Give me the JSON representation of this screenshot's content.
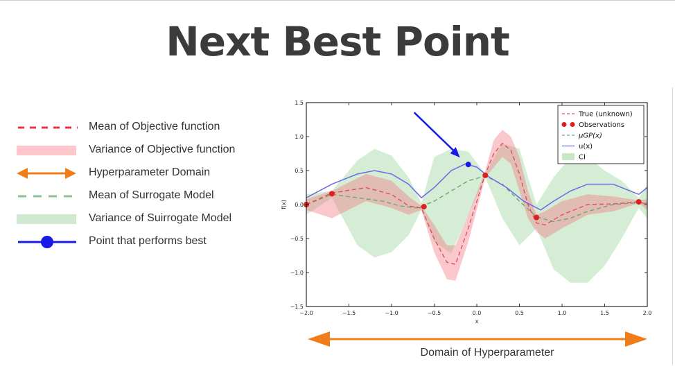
{
  "title": "Next Best Point",
  "legend_left": [
    {
      "key": "mean-objective",
      "label": "Mean of Objective function"
    },
    {
      "key": "variance-objective",
      "label": "Variance of Objective function"
    },
    {
      "key": "hyperparameter-domain",
      "label": "Hyperparameter Domain"
    },
    {
      "key": "mean-surrogate",
      "label": "Mean of Surrogate Model"
    },
    {
      "key": "variance-surrogate",
      "label": "Variance of Suirrogate Model"
    },
    {
      "key": "best-point",
      "label": "Point that performs best"
    }
  ],
  "domain_label": "Domain of Hyperparameter",
  "colors": {
    "red": "#e8313a",
    "red_fill": "#ffc6cb",
    "orange": "#f07c1a",
    "green_dash": "#8fbf8f",
    "green_fill": "#cfe8cf",
    "blue": "#1a1ae6",
    "title": "#3b3b3b"
  },
  "chart_data": {
    "type": "line",
    "xlabel": "x",
    "ylabel": "f(x)",
    "xlim": [
      -2.0,
      2.0
    ],
    "ylim": [
      -1.5,
      1.5
    ],
    "xticks": [
      "-2.0",
      "-1.5",
      "-1.0",
      "-0.5",
      "0.0",
      "0.5",
      "1.0",
      "1.5",
      "2.0"
    ],
    "yticks": [
      "1.5",
      "1.0",
      "0.5",
      "0.0",
      "-0.5",
      "-1.0",
      "-1.5"
    ],
    "legend": [
      "True (unknown)",
      "Observations",
      "μGP(x)",
      "u(x)",
      "CI"
    ],
    "legend_position": "top-right",
    "series": [
      {
        "name": "True (unknown)",
        "style": "dashed",
        "x": [
          -2.0,
          -1.7,
          -1.3,
          -1.0,
          -0.8,
          -0.65,
          -0.5,
          -0.35,
          -0.25,
          -0.1,
          0.1,
          0.2,
          0.3,
          0.4,
          0.5,
          0.6,
          0.7,
          0.8,
          1.0,
          1.3,
          1.6,
          1.9,
          2.0
        ],
        "y": [
          0.0,
          0.17,
          0.25,
          0.15,
          -0.02,
          -0.05,
          -0.5,
          -0.85,
          -0.88,
          -0.35,
          0.45,
          0.75,
          0.9,
          0.8,
          0.45,
          0.0,
          -0.27,
          -0.3,
          -0.15,
          0.0,
          0.01,
          0.04,
          0.0
        ]
      },
      {
        "name": "μGP(x)",
        "style": "dashed",
        "x": [
          -2.0,
          -1.7,
          -1.4,
          -1.1,
          -0.9,
          -0.7,
          -0.5,
          -0.3,
          -0.1,
          0.1,
          0.3,
          0.5,
          0.7,
          0.9,
          1.1,
          1.3,
          1.6,
          1.9,
          2.0
        ],
        "y": [
          0.0,
          0.15,
          0.1,
          0.05,
          -0.02,
          -0.05,
          0.05,
          0.2,
          0.35,
          0.42,
          0.3,
          0.05,
          -0.18,
          -0.25,
          -0.2,
          -0.1,
          0.0,
          0.03,
          0.02
        ]
      },
      {
        "name": "u(x)",
        "style": "solid",
        "x": [
          -2.0,
          -1.7,
          -1.4,
          -1.2,
          -1.0,
          -0.8,
          -0.65,
          -0.5,
          -0.3,
          -0.13,
          0.0,
          0.15,
          0.35,
          0.55,
          0.75,
          0.9,
          1.1,
          1.3,
          1.6,
          1.9,
          2.0
        ],
        "y": [
          0.1,
          0.3,
          0.45,
          0.5,
          0.45,
          0.3,
          0.1,
          0.25,
          0.5,
          0.6,
          0.55,
          0.4,
          0.25,
          0.05,
          -0.08,
          0.05,
          0.2,
          0.3,
          0.3,
          0.15,
          0.25
        ]
      },
      {
        "name": "CI upper",
        "style": "band",
        "x": [
          -2.0,
          -1.7,
          -1.4,
          -1.2,
          -1.0,
          -0.8,
          -0.65,
          -0.5,
          -0.3,
          -0.1,
          0.1,
          0.3,
          0.5,
          0.7,
          0.9,
          1.1,
          1.3,
          1.5,
          1.7,
          1.9,
          2.0
        ],
        "y": [
          0.15,
          0.2,
          0.65,
          0.82,
          0.72,
          0.4,
          0.02,
          0.7,
          0.82,
          0.78,
          0.45,
          0.9,
          0.82,
          0.0,
          0.4,
          0.7,
          0.7,
          0.5,
          0.35,
          0.1,
          0.3
        ]
      },
      {
        "name": "CI lower",
        "style": "band",
        "x": [
          -2.0,
          -1.7,
          -1.4,
          -1.2,
          -1.0,
          -0.8,
          -0.65,
          -0.5,
          -0.3,
          -0.1,
          0.1,
          0.3,
          0.5,
          0.7,
          0.9,
          1.1,
          1.3,
          1.5,
          1.7,
          1.9,
          2.0
        ],
        "y": [
          -0.15,
          0.1,
          -0.6,
          -0.78,
          -0.7,
          -0.45,
          -0.08,
          -0.55,
          -0.72,
          -0.15,
          0.4,
          -0.2,
          -0.6,
          -0.35,
          -0.95,
          -1.15,
          -1.15,
          -0.9,
          -0.5,
          -0.05,
          -0.2
        ]
      },
      {
        "name": "Objective variance upper",
        "style": "band",
        "x": [
          -2.0,
          -1.7,
          -1.3,
          -1.0,
          -0.8,
          -0.65,
          -0.5,
          -0.35,
          -0.25,
          -0.1,
          0.1,
          0.2,
          0.3,
          0.4,
          0.5,
          0.6,
          0.7,
          0.8,
          1.0,
          1.3,
          1.6,
          1.9,
          2.0
        ],
        "y": [
          0.08,
          0.2,
          0.45,
          0.35,
          0.12,
          -0.02,
          -0.3,
          -0.6,
          -0.6,
          -0.15,
          0.5,
          0.95,
          1.1,
          1.0,
          0.7,
          0.2,
          -0.15,
          -0.1,
          0.05,
          0.15,
          0.12,
          0.06,
          0.08
        ]
      },
      {
        "name": "Objective variance lower",
        "style": "band",
        "x": [
          -2.0,
          -1.7,
          -1.3,
          -1.0,
          -0.8,
          -0.65,
          -0.5,
          -0.35,
          -0.25,
          -0.1,
          0.1,
          0.2,
          0.3,
          0.4,
          0.5,
          0.6,
          0.7,
          0.8,
          1.0,
          1.3,
          1.6,
          1.9,
          2.0
        ],
        "y": [
          -0.08,
          -0.2,
          0.05,
          -0.05,
          -0.15,
          -0.08,
          -0.7,
          -1.1,
          -1.12,
          -0.55,
          0.4,
          0.55,
          0.7,
          0.6,
          0.2,
          -0.2,
          -0.4,
          -0.5,
          -0.35,
          -0.15,
          -0.1,
          0.02,
          -0.08
        ]
      }
    ],
    "observations": {
      "name": "Observations",
      "x": [
        -2.0,
        -1.7,
        -0.62,
        0.1,
        0.7,
        1.9
      ],
      "y": [
        0.0,
        0.16,
        -0.03,
        0.43,
        -0.19,
        0.04
      ]
    },
    "best_point": {
      "x": -0.1,
      "y": 0.59
    }
  }
}
